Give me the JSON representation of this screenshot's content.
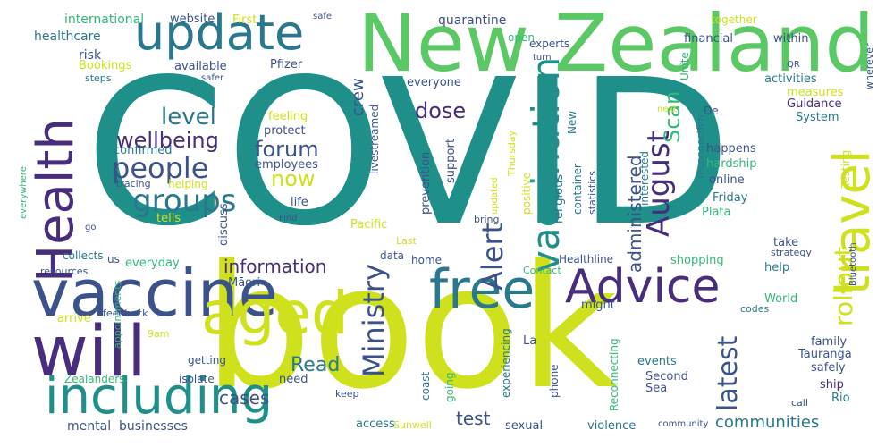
{
  "background": "#ffffff",
  "palette": {
    "teal": "#1f8f8a",
    "green": "#5ac864",
    "lime": "#cfe11c",
    "purple": "#472d7b",
    "blue": "#3b528b",
    "tealblue": "#2a788e",
    "seagreen": "#35b779",
    "yellow": "#fde725"
  },
  "words": [
    {
      "text": "COVID",
      "color": "#1f8f8a"
    },
    {
      "text": "book",
      "color": "#cfe11c"
    },
    {
      "text": "New Zealand",
      "color": "#5ac864"
    },
    {
      "text": "vaccine",
      "color": "#3b528b"
    },
    {
      "text": "will",
      "color": "#472d7b"
    },
    {
      "text": "update",
      "color": "#2a788e"
    },
    {
      "text": "Health",
      "color": "#472d7b"
    },
    {
      "text": "including",
      "color": "#1f8f8a"
    },
    {
      "text": "aged",
      "color": "#cfe11c"
    },
    {
      "text": "free",
      "color": "#2a788e"
    },
    {
      "text": "Advice",
      "color": "#472d7b"
    },
    {
      "text": "travel",
      "color": "#cfe11c"
    },
    {
      "text": "vaccination",
      "color": "#1f8f8a"
    },
    {
      "text": "people",
      "color": "#3b528b"
    },
    {
      "text": "Ministry",
      "color": "#3b528b"
    },
    {
      "text": "groups",
      "color": "#2a788e"
    },
    {
      "text": "August",
      "color": "#472d7b"
    },
    {
      "text": "Alert",
      "color": "#3b528b"
    },
    {
      "text": "latest",
      "color": "#3b528b"
    },
    {
      "text": "rollout",
      "color": "#cfe11c"
    },
    {
      "text": "level",
      "color": "#2a788e"
    },
    {
      "text": "wellbeing",
      "color": "#472d7b"
    },
    {
      "text": "forum",
      "color": "#3b528b"
    },
    {
      "text": "information",
      "color": "#472d7b"
    },
    {
      "text": "now",
      "color": "#cfe11c"
    },
    {
      "text": "dose",
      "color": "#472d7b"
    },
    {
      "text": "Scan",
      "color": "#35b779"
    },
    {
      "text": "administered",
      "color": "#3b528b"
    },
    {
      "text": "communities",
      "color": "#2a788e"
    },
    {
      "text": "cases",
      "color": "#3b528b"
    },
    {
      "text": "Read",
      "color": "#2a788e"
    },
    {
      "text": "test",
      "color": "#3b528b"
    },
    {
      "text": "crew",
      "color": "#3b528b"
    },
    {
      "text": "mental",
      "color": "#3b528b"
    },
    {
      "text": "businesses",
      "color": "#3b528b"
    },
    {
      "text": "international",
      "color": "#35b779"
    },
    {
      "text": "healthcare",
      "color": "#2a788e"
    },
    {
      "text": "website",
      "color": "#3b528b"
    },
    {
      "text": "First",
      "color": "#cfe11c"
    },
    {
      "text": "safe",
      "color": "#3b528b"
    },
    {
      "text": "quarantine",
      "color": "#3b528b"
    },
    {
      "text": "together",
      "color": "#cfe11c"
    },
    {
      "text": "financial",
      "color": "#3b528b"
    },
    {
      "text": "within",
      "color": "#3b528b"
    },
    {
      "text": "wherever",
      "color": "#3b528b"
    },
    {
      "text": "open",
      "color": "#35b779"
    },
    {
      "text": "experts",
      "color": "#3b528b"
    },
    {
      "text": "turn",
      "color": "#3b528b"
    },
    {
      "text": "risk",
      "color": "#3b528b"
    },
    {
      "text": "Bookings",
      "color": "#cfe11c"
    },
    {
      "text": "steps",
      "color": "#2a788e"
    },
    {
      "text": "available",
      "color": "#3b528b"
    },
    {
      "text": "Pfizer",
      "color": "#3b528b"
    },
    {
      "text": "safer",
      "color": "#3b528b"
    },
    {
      "text": "Unite",
      "color": "#35b779"
    },
    {
      "text": "QR",
      "color": "#3b528b"
    },
    {
      "text": "activities",
      "color": "#2a788e"
    },
    {
      "text": "measures",
      "color": "#cfe11c"
    },
    {
      "text": "Guidance",
      "color": "#472d7b"
    },
    {
      "text": "System",
      "color": "#2a788e"
    },
    {
      "text": "everyone",
      "color": "#3b528b"
    },
    {
      "text": "De",
      "color": "#3b528b"
    },
    {
      "text": "next",
      "color": "#cfe11c"
    },
    {
      "text": "feeling",
      "color": "#cfe11c"
    },
    {
      "text": "protect",
      "color": "#3b528b"
    },
    {
      "text": "confirmed",
      "color": "#2a788e"
    },
    {
      "text": "employees",
      "color": "#3b528b"
    },
    {
      "text": "life",
      "color": "#3b528b"
    },
    {
      "text": "tracing",
      "color": "#3b528b"
    },
    {
      "text": "helping",
      "color": "#cfe11c"
    },
    {
      "text": "livestreamed",
      "color": "#3b528b"
    },
    {
      "text": "prevention",
      "color": "#3b528b"
    },
    {
      "text": "support",
      "color": "#3b528b"
    },
    {
      "text": "positive",
      "color": "#cfe11c"
    },
    {
      "text": "Thursday",
      "color": "#cfe11c"
    },
    {
      "text": "religious",
      "color": "#2a788e"
    },
    {
      "text": "container",
      "color": "#2a788e"
    },
    {
      "text": "statistics",
      "color": "#3b528b"
    },
    {
      "text": "New",
      "color": "#2a788e"
    },
    {
      "text": "updated",
      "color": "#cfe11c"
    },
    {
      "text": "interested",
      "color": "#2a788e"
    },
    {
      "text": "reconnection",
      "color": "#2a788e"
    },
    {
      "text": "happens",
      "color": "#3b528b"
    },
    {
      "text": "hardship",
      "color": "#35b779"
    },
    {
      "text": "online",
      "color": "#3b528b"
    },
    {
      "text": "Friday",
      "color": "#2a788e"
    },
    {
      "text": "Plata",
      "color": "#35b779"
    },
    {
      "text": "Testing",
      "color": "#cfe11c"
    },
    {
      "text": "everywhere",
      "color": "#35b779"
    },
    {
      "text": "go",
      "color": "#3b528b"
    },
    {
      "text": "Find",
      "color": "#3b528b"
    },
    {
      "text": "tells",
      "color": "#cfe11c"
    },
    {
      "text": "discuss",
      "color": "#3b528b"
    },
    {
      "text": "Pacific",
      "color": "#cfe11c"
    },
    {
      "text": "bring",
      "color": "#3b528b"
    },
    {
      "text": "Last",
      "color": "#cfe11c"
    },
    {
      "text": "take",
      "color": "#3b528b"
    },
    {
      "text": "strategy",
      "color": "#3b528b"
    },
    {
      "text": "Bluetooth",
      "color": "#3b528b"
    },
    {
      "text": "help",
      "color": "#2a788e"
    },
    {
      "text": "collects",
      "color": "#2a788e"
    },
    {
      "text": "us",
      "color": "#3b528b"
    },
    {
      "text": "everyday",
      "color": "#35b779"
    },
    {
      "text": "shopping",
      "color": "#35b779"
    },
    {
      "text": "resources",
      "color": "#3b528b"
    },
    {
      "text": "appointments",
      "color": "#35b779"
    },
    {
      "text": "feedback",
      "color": "#3b528b"
    },
    {
      "text": "Māori",
      "color": "#3b528b"
    },
    {
      "text": "data",
      "color": "#3b528b"
    },
    {
      "text": "home",
      "color": "#3b528b"
    },
    {
      "text": "Contact",
      "color": "#35b779"
    },
    {
      "text": "Healthline",
      "color": "#3b528b"
    },
    {
      "text": "might",
      "color": "#3b528b"
    },
    {
      "text": "World",
      "color": "#35b779"
    },
    {
      "text": "codes",
      "color": "#2a788e"
    },
    {
      "text": "arrive",
      "color": "#cfe11c"
    },
    {
      "text": "9am",
      "color": "#cfe11c"
    },
    {
      "text": "getting",
      "color": "#3b528b"
    },
    {
      "text": "La",
      "color": "#3b528b"
    },
    {
      "text": "family",
      "color": "#3b528b"
    },
    {
      "text": "Tauranga",
      "color": "#3b528b"
    },
    {
      "text": "safely",
      "color": "#3b528b"
    },
    {
      "text": "events",
      "color": "#2a788e"
    },
    {
      "text": "ship",
      "color": "#472d7b"
    },
    {
      "text": "Rio",
      "color": "#2a788e"
    },
    {
      "text": "Zealanders",
      "color": "#35b779"
    },
    {
      "text": "isolate",
      "color": "#3b528b"
    },
    {
      "text": "need",
      "color": "#3b528b"
    },
    {
      "text": "keep",
      "color": "#3b528b"
    },
    {
      "text": "coast",
      "color": "#2a788e"
    },
    {
      "text": "going",
      "color": "#35b779"
    },
    {
      "text": "experiencing",
      "color": "#2a788e"
    },
    {
      "text": "phone",
      "color": "#3b528b"
    },
    {
      "text": "Reconnecting",
      "color": "#35b779"
    },
    {
      "text": "Second",
      "color": "#3b528b"
    },
    {
      "text": "Sea",
      "color": "#3b528b"
    },
    {
      "text": "call",
      "color": "#3b528b"
    },
    {
      "text": "access",
      "color": "#2a788e"
    },
    {
      "text": "Sunwell",
      "color": "#cfe11c"
    },
    {
      "text": "sexual",
      "color": "#3b528b"
    },
    {
      "text": "violence",
      "color": "#2a788e"
    },
    {
      "text": "community",
      "color": "#3b528b"
    }
  ]
}
